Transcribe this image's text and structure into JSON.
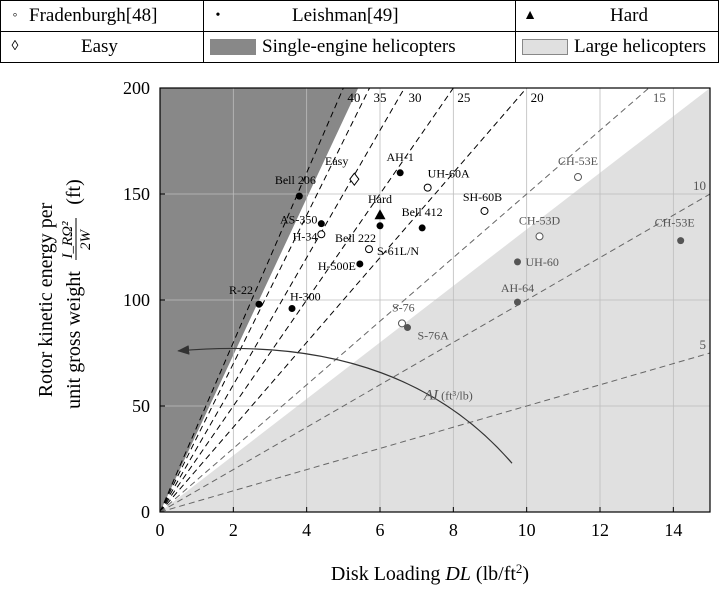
{
  "legend": {
    "fradenburgh": "Fradenburgh[48]",
    "leishman": "Leishman[49]",
    "hard": "Hard",
    "easy": "Easy",
    "single_engine": "Single-engine helicopters",
    "large": "Large helicopters",
    "symbols": {
      "open_circle": "◦",
      "filled_circle": "•",
      "triangle": "▲",
      "diamond": "◊"
    }
  },
  "colors": {
    "single_engine_fill": "#888888",
    "large_fill": "#e0e0e0",
    "grid": "#bdbdbd",
    "line": "#000000",
    "large_label": "#555555"
  },
  "chart_data": {
    "type": "scatter",
    "xlabel_prefix": "Disk Loading ",
    "xlabel_var": "DL",
    "xlabel_unit": " (lb/ft",
    "xlabel_sup": "2",
    "xlabel_close": ")",
    "ylabel_line1": "Rotor kinetic energy per",
    "ylabel_line2": "unit gross weight",
    "ylabel_formula_num": "I_RΩ²",
    "ylabel_formula_den": "2W",
    "ylabel_unit": "(ft)",
    "xlim": [
      0,
      15
    ],
    "ylim": [
      0,
      200
    ],
    "xticks": [
      0,
      2,
      4,
      6,
      8,
      10,
      12,
      14
    ],
    "yticks": [
      0,
      50,
      100,
      150,
      200
    ],
    "grid": true,
    "regions": [
      {
        "name": "Single-engine helicopters",
        "upper_slope": 37
      },
      {
        "name": "Large helicopters",
        "lower_slope": 15
      }
    ],
    "ai_lines": [
      {
        "label": "40",
        "slope": 40
      },
      {
        "label": "35",
        "slope": 35
      },
      {
        "label": "30",
        "slope": 30
      },
      {
        "label": "25",
        "slope": 25
      },
      {
        "label": "20",
        "slope": 20
      },
      {
        "label": "15",
        "slope": 15
      },
      {
        "label": "10",
        "slope": 10
      },
      {
        "label": "5",
        "slope": 5
      }
    ],
    "ai_arrow_label": "AI",
    "ai_arrow_unit": " (ft³/lb)",
    "points": [
      {
        "label": "Easy",
        "x": 5.3,
        "y": 157,
        "marker": "diamond",
        "group": "easy"
      },
      {
        "label": "AH-1",
        "x": 6.55,
        "y": 160,
        "marker": "filled",
        "group": "leishman"
      },
      {
        "label": "Bell 206",
        "x": 3.8,
        "y": 149,
        "marker": "filled",
        "group": "leishman"
      },
      {
        "label": "UH-60A",
        "x": 7.3,
        "y": 153,
        "marker": "open",
        "group": "fradenburgh"
      },
      {
        "label": "AS-350",
        "x": 4.4,
        "y": 136,
        "marker": "filled",
        "group": "leishman"
      },
      {
        "label": "H-34",
        "x": 4.4,
        "y": 131,
        "marker": "open",
        "group": "fradenburgh"
      },
      {
        "label": "Hard",
        "x": 6.0,
        "y": 140,
        "marker": "triangle",
        "group": "hard"
      },
      {
        "label": "Bell 222",
        "x": 6.0,
        "y": 135,
        "marker": "filled",
        "group": "leishman"
      },
      {
        "label": "Bell 412",
        "x": 7.15,
        "y": 134,
        "marker": "filled",
        "group": "leishman"
      },
      {
        "label": "SH-60B",
        "x": 8.85,
        "y": 142,
        "marker": "open",
        "group": "fradenburgh"
      },
      {
        "label": "S-61L/N",
        "x": 5.7,
        "y": 124,
        "marker": "open",
        "group": "fradenburgh"
      },
      {
        "label": "H-500E",
        "x": 5.45,
        "y": 117,
        "marker": "filled",
        "group": "leishman"
      },
      {
        "label": "R-22",
        "x": 2.7,
        "y": 98,
        "marker": "filled",
        "group": "leishman"
      },
      {
        "label": "H-300",
        "x": 3.6,
        "y": 96,
        "marker": "filled",
        "group": "leishman"
      },
      {
        "label": "CH-53E",
        "x": 11.4,
        "y": 158,
        "marker": "open",
        "group": "fradenburgh"
      },
      {
        "label": "CH-53D",
        "x": 10.35,
        "y": 130,
        "marker": "open",
        "group": "fradenburgh"
      },
      {
        "label": "CH-53E",
        "x": 14.2,
        "y": 128,
        "marker": "filled",
        "group": "leishman"
      },
      {
        "label": "UH-60",
        "x": 9.75,
        "y": 118,
        "marker": "filled",
        "group": "leishman"
      },
      {
        "label": "AH-64",
        "x": 9.75,
        "y": 99,
        "marker": "filled",
        "group": "leishman"
      },
      {
        "label": "S-76",
        "x": 6.6,
        "y": 89,
        "marker": "open",
        "group": "fradenburgh"
      },
      {
        "label": "S-76A",
        "x": 6.75,
        "y": 87,
        "marker": "filled",
        "group": "leishman"
      }
    ]
  }
}
